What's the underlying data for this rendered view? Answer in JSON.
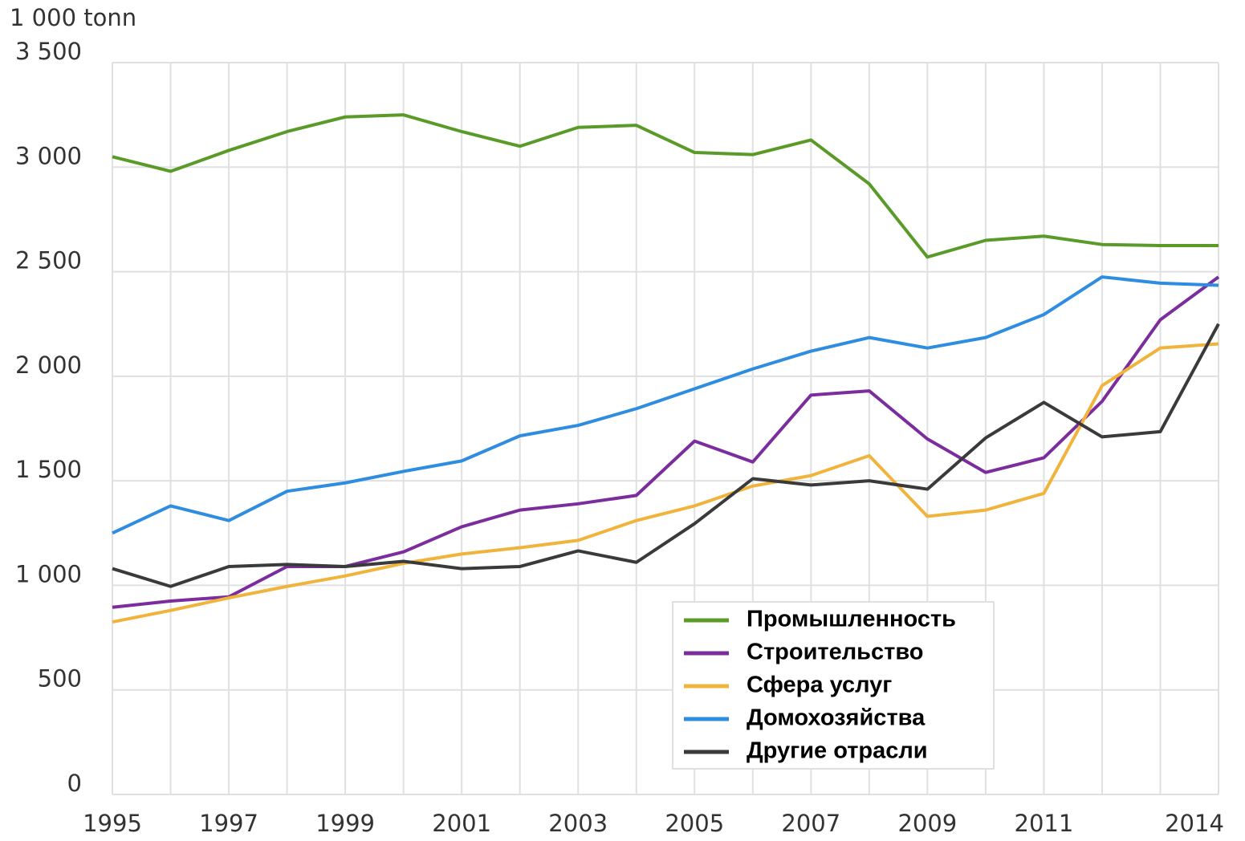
{
  "chart_data": {
    "type": "line",
    "y_label": "1 000 tonn",
    "x": [
      1995,
      1996,
      1997,
      1998,
      1999,
      2000,
      2001,
      2002,
      2003,
      2004,
      2005,
      2006,
      2007,
      2008,
      2009,
      2010,
      2011,
      2012,
      2013,
      2014
    ],
    "series": [
      {
        "name": "Промышленность",
        "color": "#5a9a28",
        "values": [
          3050,
          2980,
          3080,
          3170,
          3240,
          3250,
          3170,
          3100,
          3190,
          3200,
          3070,
          3060,
          3130,
          2920,
          2570,
          2650,
          2670,
          2630,
          2625,
          2625
        ]
      },
      {
        "name": "Строительство",
        "color": "#7b2d9e",
        "values": [
          895,
          925,
          945,
          1090,
          1090,
          1160,
          1280,
          1360,
          1390,
          1430,
          1690,
          1590,
          1910,
          1930,
          1700,
          1540,
          1610,
          1880,
          2270,
          2475
        ]
      },
      {
        "name": "Сфера услуг",
        "color": "#f0b43c",
        "values": [
          825,
          880,
          940,
          995,
          1045,
          1105,
          1150,
          1180,
          1215,
          1310,
          1380,
          1475,
          1525,
          1620,
          1330,
          1360,
          1440,
          1955,
          2135,
          2155
        ]
      },
      {
        "name": "Домохозяйства",
        "color": "#2e8de0",
        "values": [
          1250,
          1380,
          1310,
          1450,
          1490,
          1545,
          1595,
          1715,
          1765,
          1845,
          1940,
          2035,
          2120,
          2185,
          2135,
          2185,
          2295,
          2475,
          2445,
          2435
        ]
      },
      {
        "name": "Другие отрасли",
        "color": "#3a3a3a",
        "values": [
          1080,
          995,
          1090,
          1100,
          1090,
          1115,
          1080,
          1090,
          1165,
          1110,
          1295,
          1510,
          1480,
          1500,
          1460,
          1705,
          1875,
          1710,
          1735,
          2250
        ]
      }
    ],
    "xlim": [
      1995,
      2014
    ],
    "xticks": [
      1995,
      1997,
      1999,
      2001,
      2003,
      2005,
      2007,
      2009,
      2011,
      2014
    ],
    "xminor": [
      1996,
      1998,
      2000,
      2002,
      2004,
      2006,
      2008,
      2010,
      2012,
      2013
    ],
    "ylim": [
      0,
      3500
    ],
    "yticks": [
      0,
      500,
      {
        "value": 1000,
        "label": "1 000"
      },
      {
        "value": 1500,
        "label": "1 500"
      },
      {
        "value": 2000,
        "label": "2 000"
      },
      {
        "value": 2500,
        "label": "2 500"
      },
      {
        "value": 3000,
        "label": "3 000"
      },
      {
        "value": 3500,
        "label": "3 500"
      }
    ],
    "grid": true,
    "legend": "lower-right"
  }
}
